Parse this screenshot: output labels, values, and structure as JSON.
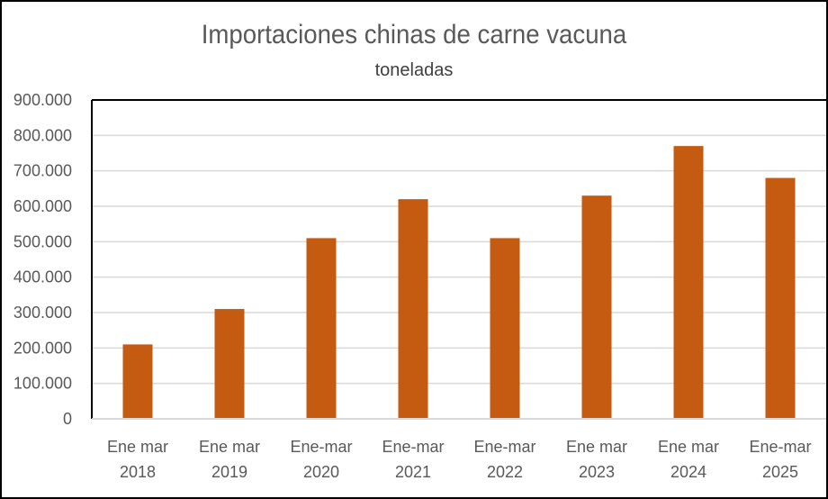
{
  "chart_data": {
    "type": "bar",
    "title": "Importaciones chinas de carne vacuna",
    "subtitle": "toneladas",
    "categories": [
      [
        "Ene mar",
        "2018"
      ],
      [
        "Ene mar",
        "2019"
      ],
      [
        "Ene-mar",
        "2020"
      ],
      [
        "Ene-mar",
        "2021"
      ],
      [
        "Ene-mar",
        "2022"
      ],
      [
        "Ene mar",
        "2023"
      ],
      [
        "Ene mar",
        "2024"
      ],
      [
        "Ene-mar",
        "2025"
      ]
    ],
    "values": [
      210000,
      310000,
      510000,
      620000,
      510000,
      630000,
      770000,
      680000
    ],
    "ylim": [
      0,
      900000
    ],
    "yticks": [
      0,
      100000,
      200000,
      300000,
      400000,
      500000,
      600000,
      700000,
      800000,
      900000
    ],
    "ytick_labels": [
      "0",
      "100.000",
      "200.000",
      "300.000",
      "400.000",
      "500.000",
      "600.000",
      "700.000",
      "800.000",
      "900.000"
    ],
    "grid": true,
    "colors": {
      "bar": "#C55A11",
      "grid": "#D9D9D9",
      "axis": "#000000"
    }
  }
}
